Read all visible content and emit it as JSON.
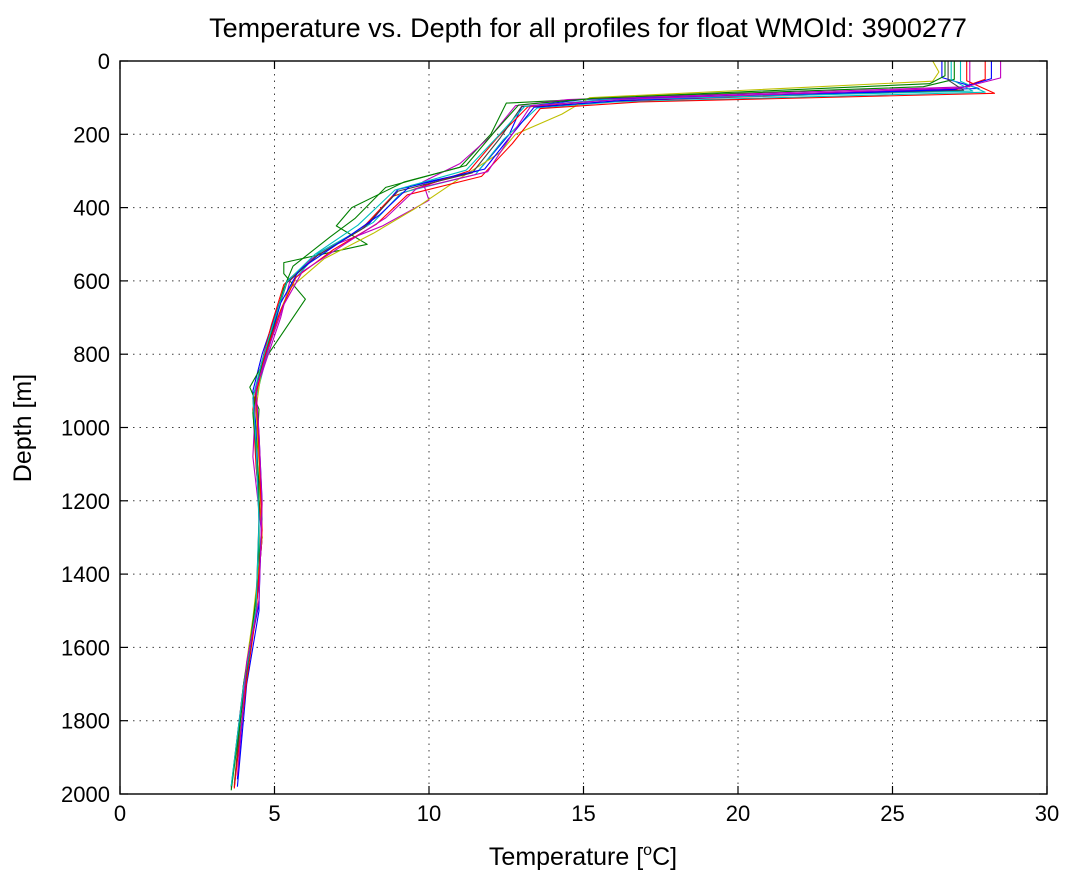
{
  "chart_data": {
    "type": "line",
    "title": "Temperature vs. Depth for all profiles for float WMOId: 3900277",
    "xlabel": "Temperature [",
    "xlabel_sup": "o",
    "xlabel_tail": "C]",
    "ylabel": "Depth [m]",
    "xlim": [
      0,
      30
    ],
    "ylim": [
      0,
      2000
    ],
    "y_reversed": true,
    "grid": true,
    "x_ticks": [
      0,
      5,
      10,
      15,
      20,
      25,
      30
    ],
    "y_ticks": [
      0,
      200,
      400,
      600,
      800,
      1000,
      1200,
      1400,
      1600,
      1800,
      2000
    ],
    "series": [
      {
        "color": "#0000ff",
        "points": [
          [
            26.6,
            0
          ],
          [
            26.6,
            45
          ],
          [
            27.8,
            75
          ],
          [
            15.0,
            105
          ],
          [
            13.0,
            125
          ],
          [
            12.6,
            200
          ],
          [
            11.6,
            300
          ],
          [
            9.0,
            350
          ],
          [
            8.0,
            450
          ],
          [
            6.5,
            520
          ],
          [
            5.4,
            600
          ],
          [
            5.0,
            700
          ],
          [
            4.6,
            800
          ],
          [
            4.3,
            900
          ],
          [
            4.4,
            1000
          ],
          [
            4.5,
            1200
          ],
          [
            4.5,
            1500
          ],
          [
            4.1,
            1700
          ],
          [
            3.8,
            1980
          ]
        ]
      },
      {
        "color": "#008000",
        "points": [
          [
            27.0,
            0
          ],
          [
            27.0,
            50
          ],
          [
            26.0,
            70
          ],
          [
            16.0,
            100
          ],
          [
            12.5,
            115
          ],
          [
            12.0,
            200
          ],
          [
            11.0,
            290
          ],
          [
            9.2,
            330
          ],
          [
            7.5,
            400
          ],
          [
            7.0,
            450
          ],
          [
            8.0,
            500
          ],
          [
            5.3,
            550
          ],
          [
            5.3,
            580
          ],
          [
            6.0,
            650
          ],
          [
            4.8,
            800
          ],
          [
            4.2,
            890
          ],
          [
            4.5,
            950
          ],
          [
            4.4,
            1100
          ],
          [
            4.6,
            1300
          ],
          [
            4.4,
            1500
          ],
          [
            4.0,
            1700
          ],
          [
            3.6,
            1980
          ]
        ]
      },
      {
        "color": "#ff0000",
        "points": [
          [
            28.0,
            0
          ],
          [
            28.0,
            50
          ],
          [
            27.0,
            80
          ],
          [
            16.5,
            108
          ],
          [
            13.2,
            125
          ],
          [
            12.2,
            210
          ],
          [
            11.3,
            300
          ],
          [
            8.8,
            370
          ],
          [
            7.8,
            460
          ],
          [
            6.2,
            540
          ],
          [
            5.3,
            610
          ],
          [
            4.9,
            720
          ],
          [
            4.5,
            850
          ],
          [
            4.3,
            950
          ],
          [
            4.4,
            1100
          ],
          [
            4.6,
            1300
          ],
          [
            4.4,
            1500
          ],
          [
            4.0,
            1700
          ],
          [
            3.7,
            1985
          ]
        ]
      },
      {
        "color": "#00bfbf",
        "points": [
          [
            27.2,
            0
          ],
          [
            27.2,
            55
          ],
          [
            28.0,
            85
          ],
          [
            16.0,
            112
          ],
          [
            13.5,
            128
          ],
          [
            12.4,
            215
          ],
          [
            11.5,
            310
          ],
          [
            9.1,
            360
          ],
          [
            8.2,
            440
          ],
          [
            6.4,
            525
          ],
          [
            5.6,
            600
          ],
          [
            5.1,
            700
          ],
          [
            4.7,
            820
          ],
          [
            4.4,
            920
          ],
          [
            4.5,
            1050
          ],
          [
            4.6,
            1250
          ],
          [
            4.4,
            1500
          ],
          [
            4.1,
            1680
          ],
          [
            3.7,
            1970
          ]
        ]
      },
      {
        "color": "#bf00bf",
        "points": [
          [
            27.5,
            0
          ],
          [
            27.5,
            50
          ],
          [
            27.5,
            70
          ],
          [
            14.5,
            105
          ],
          [
            12.8,
            122
          ],
          [
            12.0,
            205
          ],
          [
            11.0,
            280
          ],
          [
            9.8,
            330
          ],
          [
            10.0,
            380
          ],
          [
            8.5,
            450
          ],
          [
            7.0,
            500
          ],
          [
            6.2,
            540
          ],
          [
            5.5,
            600
          ],
          [
            5.2,
            700
          ],
          [
            4.8,
            800
          ],
          [
            4.4,
            900
          ],
          [
            4.3,
            1080
          ],
          [
            4.6,
            1300
          ],
          [
            4.4,
            1500
          ],
          [
            4.0,
            1700
          ],
          [
            3.6,
            1985
          ]
        ]
      },
      {
        "color": "#bfbf00",
        "points": [
          [
            26.3,
            0
          ],
          [
            26.5,
            30
          ],
          [
            26.3,
            55
          ],
          [
            15.2,
            100
          ],
          [
            14.3,
            145
          ],
          [
            12.8,
            200
          ],
          [
            12.3,
            250
          ],
          [
            11.0,
            320
          ],
          [
            9.6,
            400
          ],
          [
            8.2,
            470
          ],
          [
            6.6,
            540
          ],
          [
            5.5,
            620
          ],
          [
            5.0,
            720
          ],
          [
            4.6,
            830
          ],
          [
            4.4,
            950
          ],
          [
            4.5,
            1100
          ],
          [
            4.6,
            1300
          ],
          [
            4.3,
            1520
          ],
          [
            4.0,
            1700
          ],
          [
            3.7,
            1975
          ]
        ]
      },
      {
        "color": "#404040",
        "points": [
          [
            26.8,
            0
          ],
          [
            26.8,
            52
          ],
          [
            27.3,
            80
          ],
          [
            15.8,
            106
          ],
          [
            13.0,
            124
          ],
          [
            12.3,
            210
          ],
          [
            11.4,
            305
          ],
          [
            9.0,
            355
          ],
          [
            7.9,
            455
          ],
          [
            6.4,
            530
          ],
          [
            5.4,
            605
          ],
          [
            5.0,
            710
          ],
          [
            4.6,
            820
          ],
          [
            4.3,
            920
          ],
          [
            4.4,
            1050
          ],
          [
            4.5,
            1250
          ],
          [
            4.4,
            1490
          ],
          [
            4.0,
            1700
          ],
          [
            3.7,
            1980
          ]
        ]
      },
      {
        "color": "#0000ff",
        "points": [
          [
            28.2,
            0
          ],
          [
            28.2,
            48
          ],
          [
            27.0,
            78
          ],
          [
            16.2,
            108
          ],
          [
            13.4,
            126
          ],
          [
            12.5,
            220
          ],
          [
            11.8,
            295
          ],
          [
            9.4,
            340
          ],
          [
            8.4,
            420
          ],
          [
            7.2,
            490
          ],
          [
            5.8,
            570
          ],
          [
            5.2,
            660
          ],
          [
            4.8,
            780
          ],
          [
            4.4,
            900
          ],
          [
            4.5,
            1020
          ],
          [
            4.6,
            1200
          ],
          [
            4.5,
            1480
          ],
          [
            4.1,
            1650
          ],
          [
            3.8,
            1960
          ]
        ]
      },
      {
        "color": "#008000",
        "points": [
          [
            26.7,
            0
          ],
          [
            26.7,
            40
          ],
          [
            26.2,
            62
          ],
          [
            15.3,
            102
          ],
          [
            12.9,
            120
          ],
          [
            12.1,
            195
          ],
          [
            11.2,
            285
          ],
          [
            8.6,
            345
          ],
          [
            7.6,
            430
          ],
          [
            6.8,
            480
          ],
          [
            5.6,
            560
          ],
          [
            5.3,
            620
          ],
          [
            4.9,
            740
          ],
          [
            4.5,
            860
          ],
          [
            4.3,
            960
          ],
          [
            4.5,
            1150
          ],
          [
            4.5,
            1400
          ],
          [
            4.2,
            1600
          ],
          [
            3.6,
            1990
          ]
        ]
      },
      {
        "color": "#ff0000",
        "points": [
          [
            27.4,
            0
          ],
          [
            27.4,
            54
          ],
          [
            28.3,
            88
          ],
          [
            16.8,
            112
          ],
          [
            13.6,
            130
          ],
          [
            12.7,
            225
          ],
          [
            11.7,
            315
          ],
          [
            9.3,
            365
          ],
          [
            8.3,
            445
          ],
          [
            6.9,
            515
          ],
          [
            5.7,
            590
          ],
          [
            5.2,
            680
          ],
          [
            4.7,
            800
          ],
          [
            4.4,
            910
          ],
          [
            4.5,
            1060
          ],
          [
            4.6,
            1280
          ],
          [
            4.4,
            1510
          ],
          [
            4.1,
            1690
          ],
          [
            3.7,
            1982
          ]
        ]
      },
      {
        "color": "#00bfbf",
        "points": [
          [
            26.9,
            0
          ],
          [
            26.9,
            50
          ],
          [
            27.6,
            82
          ],
          [
            15.6,
            106
          ],
          [
            13.1,
            124
          ],
          [
            12.2,
            208
          ],
          [
            11.2,
            298
          ],
          [
            8.9,
            352
          ],
          [
            7.7,
            448
          ],
          [
            6.3,
            528
          ],
          [
            5.4,
            602
          ],
          [
            5.0,
            706
          ],
          [
            4.6,
            818
          ],
          [
            4.3,
            918
          ],
          [
            4.4,
            1040
          ],
          [
            4.5,
            1260
          ],
          [
            4.4,
            1495
          ],
          [
            4.0,
            1705
          ],
          [
            3.6,
            1978
          ]
        ]
      },
      {
        "color": "#bf00bf",
        "points": [
          [
            28.5,
            0
          ],
          [
            28.5,
            46
          ],
          [
            27.2,
            74
          ],
          [
            16.4,
            104
          ],
          [
            13.3,
            122
          ],
          [
            12.6,
            212
          ],
          [
            11.9,
            302
          ],
          [
            9.6,
            348
          ],
          [
            8.6,
            428
          ],
          [
            7.3,
            498
          ],
          [
            5.9,
            575
          ],
          [
            5.3,
            665
          ],
          [
            4.8,
            785
          ],
          [
            4.4,
            895
          ],
          [
            4.5,
            1015
          ],
          [
            4.6,
            1210
          ],
          [
            4.5,
            1470
          ],
          [
            4.1,
            1640
          ],
          [
            3.8,
            1950
          ]
        ]
      }
    ]
  }
}
